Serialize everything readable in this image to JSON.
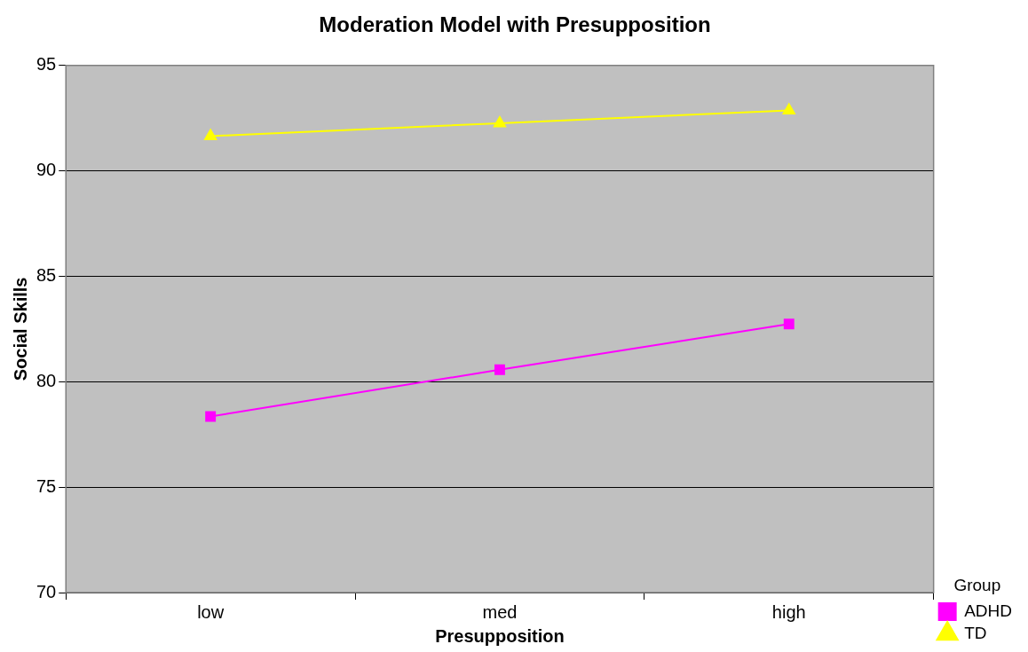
{
  "chart_data": {
    "type": "line",
    "title": "Moderation Model with Presupposition",
    "xlabel": "Presupposition",
    "ylabel": "Social Skills",
    "legend_title": "Group",
    "categories": [
      "low",
      "med",
      "high"
    ],
    "series": [
      {
        "name": "ADHD",
        "color": "#ff00ff",
        "marker": "square",
        "values": [
          78.35,
          80.57,
          82.74
        ]
      },
      {
        "name": "TD",
        "color": "#ffff00",
        "marker": "triangle",
        "values": [
          91.65,
          92.26,
          92.87
        ]
      }
    ],
    "ylim": [
      70,
      95
    ],
    "yticks": [
      70,
      75,
      80,
      85,
      90,
      95
    ],
    "grid": "y",
    "legend": "bottom right",
    "line_style": "solid"
  }
}
